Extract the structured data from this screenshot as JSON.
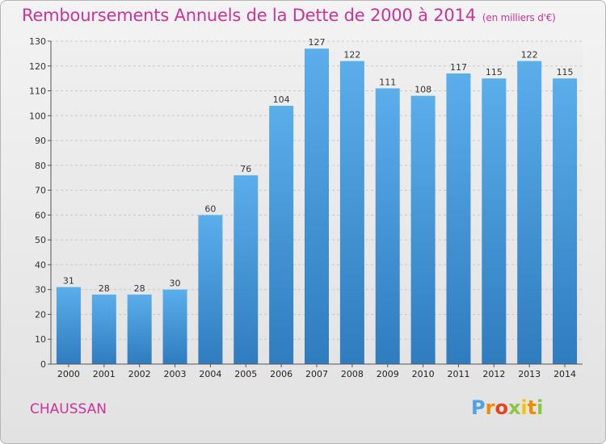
{
  "header": {
    "title": "Remboursements Annuels de la Dette de 2000 à 2014",
    "subtitle": "(en milliers d'€)"
  },
  "footer": {
    "commune": "CHAUSSAN",
    "logo": "Proxiti"
  },
  "colors": {
    "title": "#cc3399",
    "bar_top": "#5aaeea",
    "bar_bottom": "#2f7cbf"
  },
  "chart_data": {
    "type": "bar",
    "title": "Remboursements Annuels de la Dette de 2000 à 2014",
    "subtitle": "(en milliers d'€)",
    "categories": [
      "2000",
      "2001",
      "2002",
      "2003",
      "2004",
      "2005",
      "2006",
      "2007",
      "2008",
      "2009",
      "2010",
      "2011",
      "2012",
      "2013",
      "2014"
    ],
    "values": [
      31,
      28,
      28,
      30,
      60,
      76,
      104,
      127,
      122,
      111,
      108,
      117,
      115,
      122,
      115
    ],
    "ylim": [
      0,
      130
    ],
    "yticks": [
      0,
      10,
      20,
      30,
      40,
      50,
      60,
      70,
      80,
      90,
      100,
      110,
      120,
      130
    ],
    "grid": true,
    "legend": "none"
  }
}
